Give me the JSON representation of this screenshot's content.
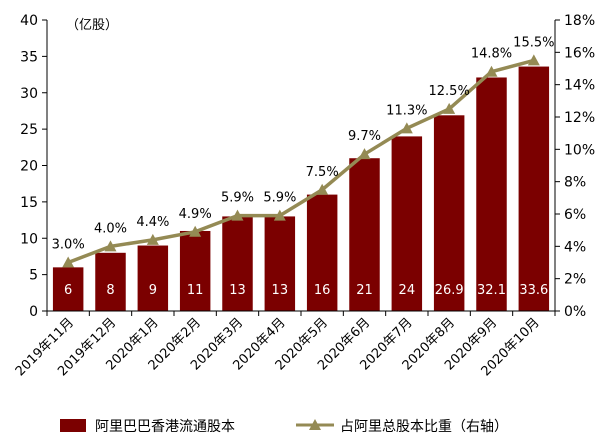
{
  "chart_data": {
    "type": "bar",
    "unit_label": "（亿股）",
    "categories": [
      "2019年11月",
      "2019年12月",
      "2020年1月",
      "2020年2月",
      "2020年3月",
      "2020年4月",
      "2020年5月",
      "2020年6月",
      "2020年7月",
      "2020年8月",
      "2020年9月",
      "2020年10月"
    ],
    "series": [
      {
        "name": "阿里巴巴香港流通股本",
        "type": "bar",
        "axis": "left",
        "values": [
          6,
          8,
          9,
          11,
          13,
          13,
          16,
          21,
          24,
          26.9,
          32.1,
          33.6
        ],
        "labels": [
          "6",
          "8",
          "9",
          "11",
          "13",
          "13",
          "16",
          "21",
          "24",
          "26.9",
          "32.1",
          "33.6"
        ],
        "color": "#7b0000"
      },
      {
        "name": "占阿里总股本比重（右轴）",
        "type": "line",
        "axis": "right",
        "values": [
          3.0,
          4.0,
          4.4,
          4.9,
          5.9,
          5.9,
          7.5,
          9.7,
          11.3,
          12.5,
          14.8,
          15.5
        ],
        "labels": [
          "3.0%",
          "4.0%",
          "4.4%",
          "4.9%",
          "5.9%",
          "5.9%",
          "7.5%",
          "9.7%",
          "11.3%",
          "12.5%",
          "14.8%",
          "15.5%"
        ],
        "color": "#948a54"
      }
    ],
    "y_left": {
      "min": 0,
      "max": 40,
      "ticks": [
        "0",
        "5",
        "10",
        "15",
        "20",
        "25",
        "30",
        "35",
        "40"
      ]
    },
    "y_right": {
      "min": 0,
      "max": 18,
      "ticks": [
        "0%",
        "2%",
        "4%",
        "6%",
        "8%",
        "10%",
        "12%",
        "14%",
        "16%",
        "18%"
      ]
    },
    "grid": false,
    "legend_position": "bottom"
  }
}
